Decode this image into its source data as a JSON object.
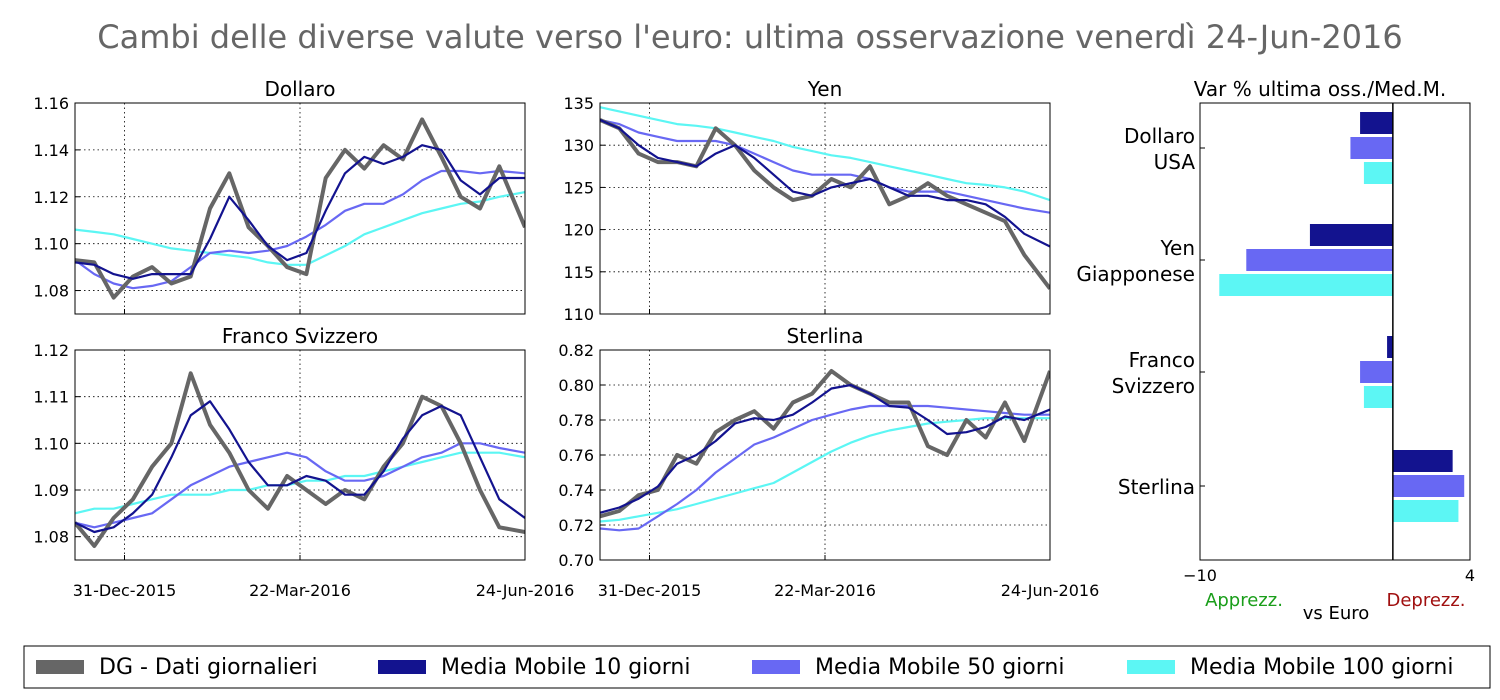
{
  "title": "Cambi delle diverse valute verso l'euro: ultima osservazione venerdì 24-Jun-2016",
  "colors": {
    "dg": "#666666",
    "mm10": "#13138f",
    "mm50": "#6868f3",
    "mm100": "#5cf6f4",
    "apprezz": "#1a9e1a",
    "deprezz": "#a01010"
  },
  "legend": [
    {
      "key": "dg",
      "label": "DG - Dati giornalieri"
    },
    {
      "key": "mm10",
      "label": "Media Mobile 10 giorni"
    },
    {
      "key": "mm50",
      "label": "Media Mobile 50 giorni"
    },
    {
      "key": "mm100",
      "label": "Media Mobile 100 giorni"
    }
  ],
  "x_ticks": [
    "31-Dec-2015",
    "22-Mar-2016",
    "24-Jun-2016"
  ],
  "chart_data": [
    {
      "type": "line",
      "title": "Dollaro",
      "ylim": [
        1.07,
        1.16
      ],
      "yticks": [
        "1.08",
        "1.10",
        "1.12",
        "1.14",
        "1.16"
      ],
      "x": [
        0,
        6,
        12,
        18,
        24,
        30,
        36,
        42,
        48,
        54,
        60,
        66,
        72,
        78,
        84,
        90,
        96,
        102,
        108,
        114,
        120,
        126,
        132,
        140
      ],
      "series": [
        {
          "key": "dg",
          "values": [
            1.093,
            1.092,
            1.077,
            1.086,
            1.09,
            1.083,
            1.086,
            1.115,
            1.13,
            1.107,
            1.099,
            1.09,
            1.087,
            1.128,
            1.14,
            1.132,
            1.142,
            1.136,
            1.153,
            1.137,
            1.12,
            1.115,
            1.133,
            1.107
          ]
        },
        {
          "key": "mm10",
          "values": [
            1.092,
            1.091,
            1.087,
            1.085,
            1.087,
            1.087,
            1.087,
            1.102,
            1.12,
            1.11,
            1.099,
            1.093,
            1.096,
            1.114,
            1.13,
            1.137,
            1.134,
            1.137,
            1.142,
            1.14,
            1.127,
            1.121,
            1.128,
            1.128
          ]
        },
        {
          "key": "mm50",
          "values": [
            1.093,
            1.087,
            1.083,
            1.081,
            1.082,
            1.084,
            1.09,
            1.096,
            1.097,
            1.096,
            1.097,
            1.099,
            1.103,
            1.108,
            1.114,
            1.117,
            1.117,
            1.121,
            1.127,
            1.131,
            1.131,
            1.13,
            1.131,
            1.13
          ]
        },
        {
          "key": "mm100",
          "values": [
            1.106,
            1.105,
            1.104,
            1.102,
            1.1,
            1.098,
            1.097,
            1.096,
            1.095,
            1.094,
            1.092,
            1.091,
            1.091,
            1.095,
            1.099,
            1.104,
            1.107,
            1.11,
            1.113,
            1.115,
            1.117,
            1.118,
            1.12,
            1.122
          ]
        }
      ]
    },
    {
      "type": "line",
      "title": "Yen",
      "ylim": [
        110,
        135
      ],
      "yticks": [
        "110",
        "115",
        "120",
        "125",
        "130",
        "135"
      ],
      "x": [
        0,
        6,
        12,
        18,
        24,
        30,
        36,
        42,
        48,
        54,
        60,
        66,
        72,
        78,
        84,
        90,
        96,
        102,
        108,
        114,
        120,
        126,
        132,
        140
      ],
      "series": [
        {
          "key": "dg",
          "values": [
            133.0,
            132.0,
            129.0,
            128.0,
            128.0,
            127.5,
            132.0,
            130.0,
            127.0,
            125.0,
            123.5,
            124.0,
            126.0,
            125.0,
            127.5,
            123.0,
            124.0,
            125.5,
            124.0,
            123.0,
            122.0,
            121.0,
            117.0,
            113.0
          ]
        },
        {
          "key": "mm10",
          "values": [
            133.0,
            132.0,
            130.0,
            128.5,
            128.0,
            127.5,
            129.0,
            130.0,
            128.5,
            126.5,
            124.5,
            124.0,
            125.0,
            125.5,
            126.0,
            125.0,
            124.0,
            124.0,
            123.5,
            123.5,
            123.0,
            121.5,
            119.5,
            118.0
          ]
        },
        {
          "key": "mm50",
          "values": [
            133.0,
            132.5,
            131.5,
            131.0,
            130.5,
            130.5,
            130.5,
            130.0,
            129.0,
            128.0,
            127.0,
            126.5,
            126.5,
            126.5,
            126.0,
            125.0,
            124.5,
            124.5,
            124.5,
            124.0,
            123.5,
            123.0,
            122.5,
            122.0
          ]
        },
        {
          "key": "mm100",
          "values": [
            134.5,
            134.0,
            133.5,
            133.0,
            132.5,
            132.3,
            132.0,
            131.5,
            131.0,
            130.5,
            129.8,
            129.3,
            128.8,
            128.5,
            128.0,
            127.5,
            127.0,
            126.5,
            126.0,
            125.5,
            125.3,
            125.0,
            124.5,
            123.5
          ]
        }
      ]
    },
    {
      "type": "line",
      "title": "Franco Svizzero",
      "ylim": [
        1.075,
        1.12
      ],
      "yticks": [
        "1.08",
        "1.09",
        "1.10",
        "1.11",
        "1.12"
      ],
      "x": [
        0,
        6,
        12,
        18,
        24,
        30,
        36,
        42,
        48,
        54,
        60,
        66,
        72,
        78,
        84,
        90,
        96,
        102,
        108,
        114,
        120,
        126,
        132,
        140
      ],
      "series": [
        {
          "key": "dg",
          "values": [
            1.083,
            1.078,
            1.084,
            1.088,
            1.095,
            1.1,
            1.115,
            1.104,
            1.098,
            1.09,
            1.086,
            1.093,
            1.09,
            1.087,
            1.09,
            1.088,
            1.095,
            1.1,
            1.11,
            1.108,
            1.1,
            1.09,
            1.082,
            1.081
          ]
        },
        {
          "key": "mm10",
          "values": [
            1.083,
            1.081,
            1.082,
            1.085,
            1.089,
            1.097,
            1.106,
            1.109,
            1.103,
            1.096,
            1.091,
            1.091,
            1.093,
            1.092,
            1.089,
            1.089,
            1.094,
            1.101,
            1.106,
            1.108,
            1.106,
            1.097,
            1.088,
            1.084
          ]
        },
        {
          "key": "mm50",
          "values": [
            1.083,
            1.082,
            1.083,
            1.084,
            1.085,
            1.088,
            1.091,
            1.093,
            1.095,
            1.096,
            1.097,
            1.098,
            1.097,
            1.094,
            1.092,
            1.092,
            1.093,
            1.095,
            1.097,
            1.098,
            1.1,
            1.1,
            1.099,
            1.098
          ]
        },
        {
          "key": "mm100",
          "values": [
            1.085,
            1.086,
            1.086,
            1.087,
            1.088,
            1.089,
            1.089,
            1.089,
            1.09,
            1.09,
            1.091,
            1.091,
            1.092,
            1.092,
            1.093,
            1.093,
            1.094,
            1.095,
            1.096,
            1.097,
            1.098,
            1.098,
            1.098,
            1.097
          ]
        }
      ]
    },
    {
      "type": "line",
      "title": "Sterlina",
      "ylim": [
        0.7,
        0.82
      ],
      "yticks": [
        "0.70",
        "0.72",
        "0.74",
        "0.76",
        "0.78",
        "0.80",
        "0.82"
      ],
      "x": [
        0,
        6,
        12,
        18,
        24,
        30,
        36,
        42,
        48,
        54,
        60,
        66,
        72,
        78,
        84,
        90,
        96,
        102,
        108,
        114,
        120,
        126,
        132,
        140
      ],
      "series": [
        {
          "key": "dg",
          "values": [
            0.725,
            0.728,
            0.737,
            0.74,
            0.76,
            0.755,
            0.773,
            0.78,
            0.785,
            0.775,
            0.79,
            0.795,
            0.808,
            0.8,
            0.795,
            0.79,
            0.79,
            0.765,
            0.76,
            0.78,
            0.77,
            0.79,
            0.768,
            0.808
          ]
        },
        {
          "key": "mm10",
          "values": [
            0.727,
            0.73,
            0.735,
            0.742,
            0.755,
            0.76,
            0.768,
            0.778,
            0.781,
            0.78,
            0.783,
            0.79,
            0.798,
            0.8,
            0.795,
            0.788,
            0.787,
            0.78,
            0.772,
            0.773,
            0.776,
            0.782,
            0.78,
            0.786
          ]
        },
        {
          "key": "mm50",
          "values": [
            0.718,
            0.717,
            0.718,
            0.725,
            0.732,
            0.74,
            0.75,
            0.758,
            0.766,
            0.77,
            0.775,
            0.78,
            0.783,
            0.786,
            0.788,
            0.788,
            0.788,
            0.788,
            0.787,
            0.786,
            0.785,
            0.784,
            0.783,
            0.783
          ]
        },
        {
          "key": "mm100",
          "values": [
            0.722,
            0.723,
            0.725,
            0.727,
            0.729,
            0.732,
            0.735,
            0.738,
            0.741,
            0.744,
            0.75,
            0.756,
            0.762,
            0.767,
            0.771,
            0.774,
            0.776,
            0.778,
            0.779,
            0.78,
            0.781,
            0.781,
            0.781,
            0.781
          ]
        }
      ]
    },
    {
      "type": "bar",
      "orientation": "horizontal",
      "title": "Var % ultima oss./Med.M.",
      "xlim": [
        -10,
        4
      ],
      "xticks": [
        "−10",
        "4"
      ],
      "categories": [
        {
          "label_lines": [
            "Dollaro",
            "USA"
          ],
          "values": {
            "mm10": -1.7,
            "mm50": -2.2,
            "mm100": -1.5
          }
        },
        {
          "label_lines": [
            "Yen",
            "Giapponese"
          ],
          "values": {
            "mm10": -4.3,
            "mm50": -7.6,
            "mm100": -9.0
          }
        },
        {
          "label_lines": [
            "Franco",
            "Svizzero"
          ],
          "values": {
            "mm10": -0.3,
            "mm50": -1.7,
            "mm100": -1.5
          }
        },
        {
          "label_lines": [
            "Sterlina"
          ],
          "values": {
            "mm10": 3.1,
            "mm50": 3.7,
            "mm100": 3.4
          }
        }
      ],
      "left_note": "Apprezz.",
      "center_note": "vs Euro",
      "right_note": "Deprezz."
    }
  ]
}
